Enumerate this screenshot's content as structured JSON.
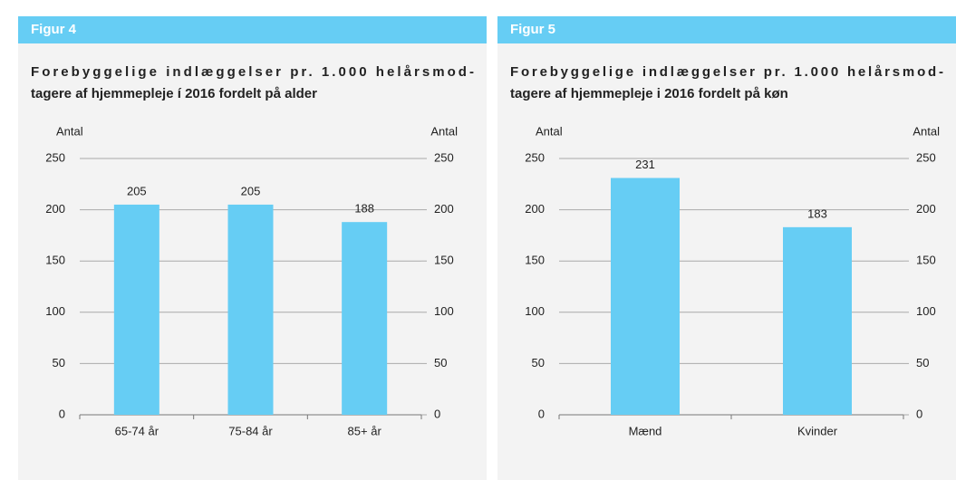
{
  "chart_data": [
    {
      "type": "bar",
      "figure_label": "Figur 4",
      "title": [
        "Forebyggelige indlæggelser pr. 1.000 helårsmod-",
        "tagere af hjemmepleje í 2016 fordelt på alder"
      ],
      "y_label": "Antal",
      "y2_label": "Antal",
      "categories": [
        "65-74 år",
        "75-84 år",
        "85+ år"
      ],
      "values": [
        205,
        205,
        188
      ],
      "color": "#66cdf4",
      "ylim": [
        0,
        250
      ],
      "yticks": [
        0,
        50,
        100,
        150,
        200,
        250
      ],
      "y2lim": [
        0,
        250
      ],
      "y2ticks": [
        0,
        50,
        100,
        150,
        200,
        250
      ],
      "grid": true
    },
    {
      "type": "bar",
      "figure_label": "Figur 5",
      "title": [
        "Forebyggelige indlæggelser pr. 1.000 helårsmod-",
        "tagere af hjemmepleje i 2016 fordelt på køn"
      ],
      "y_label": "Antal",
      "y2_label": "Antal",
      "categories": [
        "Mænd",
        "Kvinder"
      ],
      "values": [
        231,
        183
      ],
      "color": "#66cdf4",
      "ylim": [
        0,
        250
      ],
      "yticks": [
        0,
        50,
        100,
        150,
        200,
        250
      ],
      "y2lim": [
        0,
        250
      ],
      "y2ticks": [
        0,
        50,
        100,
        150,
        200,
        250
      ],
      "grid": true
    }
  ]
}
